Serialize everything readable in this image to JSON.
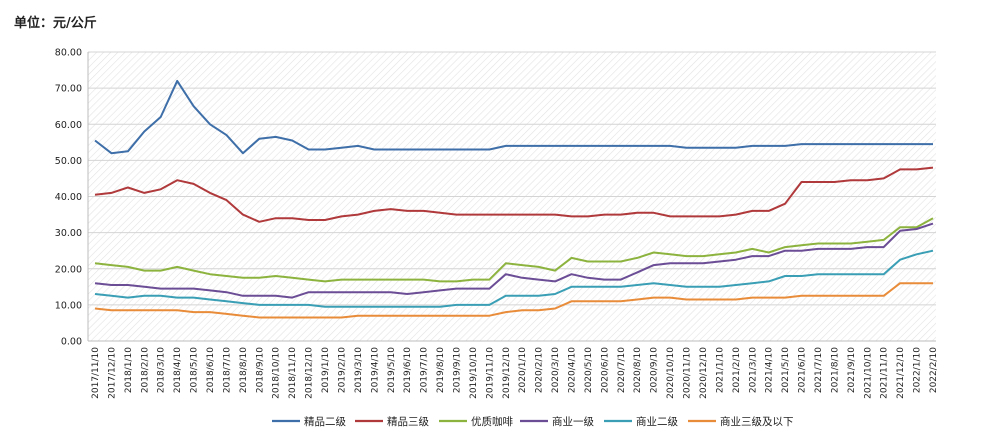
{
  "unit_label": "单位：元/公斤",
  "chart_data": {
    "type": "line",
    "ylim": [
      0,
      80
    ],
    "y_ticks": [
      "0.00",
      "10.00",
      "20.00",
      "30.00",
      "40.00",
      "50.00",
      "60.00",
      "70.00",
      "80.00"
    ],
    "x_ticks": [
      "2017/11/10",
      "2017/12/10",
      "2018/1/10",
      "2018/2/10",
      "2018/3/10",
      "2018/4/10",
      "2018/5/10",
      "2018/6/10",
      "2018/7/10",
      "2018/8/10",
      "2018/9/10",
      "2018/10/10",
      "2018/11/10",
      "2018/12/10",
      "2019/1/10",
      "2019/2/10",
      "2019/3/10",
      "2019/4/10",
      "2019/5/10",
      "2019/6/10",
      "2019/7/10",
      "2019/8/10",
      "2019/9/10",
      "2019/10/10",
      "2019/11/10",
      "2019/12/10",
      "2020/1/10",
      "2020/2/10",
      "2020/3/10",
      "2020/4/10",
      "2020/5/10",
      "2020/6/10",
      "2020/7/10",
      "2020/8/10",
      "2020/9/10",
      "2020/10/10",
      "2020/11/10",
      "2020/12/10",
      "2021/1/10",
      "2021/2/10",
      "2021/3/10",
      "2021/4/10",
      "2021/5/10",
      "2021/6/10",
      "2021/7/10",
      "2021/8/10",
      "2021/9/10",
      "2021/10/10",
      "2021/11/10",
      "2021/12/10",
      "2022/1/10",
      "2022/2/10"
    ],
    "grid": true,
    "background_pattern": "diagonal-hatch",
    "legend_position": "bottom",
    "series": [
      {
        "name": "精品二级",
        "color": "#3f6fa8",
        "values": [
          55.5,
          52.0,
          52.5,
          58.0,
          62.0,
          72.0,
          65.0,
          60.0,
          57.0,
          52.0,
          56.0,
          56.5,
          55.5,
          53.0,
          53.0,
          53.5,
          54.0,
          53.0,
          53.0,
          53.0,
          53.0,
          53.0,
          53.0,
          53.0,
          53.0,
          54.0,
          54.0,
          54.0,
          54.0,
          54.0,
          54.0,
          54.0,
          54.0,
          54.0,
          54.0,
          54.0,
          53.5,
          53.5,
          53.5,
          53.5,
          54.0,
          54.0,
          54.0,
          54.5,
          54.5,
          54.5,
          54.5,
          54.5,
          54.5,
          54.5,
          54.5,
          54.5
        ]
      },
      {
        "name": "精品三级",
        "color": "#b0393b",
        "values": [
          40.5,
          41.0,
          42.5,
          41.0,
          42.0,
          44.5,
          43.5,
          41.0,
          39.0,
          35.0,
          33.0,
          34.0,
          34.0,
          33.5,
          33.5,
          34.5,
          35.0,
          36.0,
          36.5,
          36.0,
          36.0,
          35.5,
          35.0,
          35.0,
          35.0,
          35.0,
          35.0,
          35.0,
          35.0,
          34.5,
          34.5,
          35.0,
          35.0,
          35.5,
          35.5,
          34.5,
          34.5,
          34.5,
          34.5,
          35.0,
          36.0,
          36.0,
          38.0,
          44.0,
          44.0,
          44.0,
          44.5,
          44.5,
          45.0,
          47.5,
          47.5,
          48.0
        ]
      },
      {
        "name": "优质咖啡",
        "color": "#8db33f",
        "values": [
          21.5,
          21.0,
          20.5,
          19.5,
          19.5,
          20.5,
          19.5,
          18.5,
          18.0,
          17.5,
          17.5,
          18.0,
          17.5,
          17.0,
          16.5,
          17.0,
          17.0,
          17.0,
          17.0,
          17.0,
          17.0,
          16.5,
          16.5,
          17.0,
          17.0,
          21.5,
          21.0,
          20.5,
          19.5,
          23.0,
          22.0,
          22.0,
          22.0,
          23.0,
          24.5,
          24.0,
          23.5,
          23.5,
          24.0,
          24.5,
          25.5,
          24.5,
          26.0,
          26.5,
          27.0,
          27.0,
          27.0,
          27.5,
          28.0,
          31.5,
          31.5,
          34.0
        ]
      },
      {
        "name": "商业一级",
        "color": "#6b4d96",
        "values": [
          16.0,
          15.5,
          15.5,
          15.0,
          14.5,
          14.5,
          14.5,
          14.0,
          13.5,
          12.5,
          12.5,
          12.5,
          12.0,
          13.5,
          13.5,
          13.5,
          13.5,
          13.5,
          13.5,
          13.0,
          13.5,
          14.0,
          14.5,
          14.5,
          14.5,
          18.5,
          17.5,
          17.0,
          16.5,
          18.5,
          17.5,
          17.0,
          17.0,
          19.0,
          21.0,
          21.5,
          21.5,
          21.5,
          22.0,
          22.5,
          23.5,
          23.5,
          25.0,
          25.0,
          25.5,
          25.5,
          25.5,
          26.0,
          26.0,
          30.5,
          31.0,
          32.5
        ]
      },
      {
        "name": "商业二级",
        "color": "#3a9fb5",
        "values": [
          13.0,
          12.5,
          12.0,
          12.5,
          12.5,
          12.0,
          12.0,
          11.5,
          11.0,
          10.5,
          10.0,
          10.0,
          10.0,
          10.0,
          9.5,
          9.5,
          9.5,
          9.5,
          9.5,
          9.5,
          9.5,
          9.5,
          10.0,
          10.0,
          10.0,
          12.5,
          12.5,
          12.5,
          13.0,
          15.0,
          15.0,
          15.0,
          15.0,
          15.5,
          16.0,
          15.5,
          15.0,
          15.0,
          15.0,
          15.5,
          16.0,
          16.5,
          18.0,
          18.0,
          18.5,
          18.5,
          18.5,
          18.5,
          18.5,
          22.5,
          24.0,
          25.0
        ]
      },
      {
        "name": "商业三级及以下",
        "color": "#e98c3a",
        "values": [
          9.0,
          8.5,
          8.5,
          8.5,
          8.5,
          8.5,
          8.0,
          8.0,
          7.5,
          7.0,
          6.5,
          6.5,
          6.5,
          6.5,
          6.5,
          6.5,
          7.0,
          7.0,
          7.0,
          7.0,
          7.0,
          7.0,
          7.0,
          7.0,
          7.0,
          8.0,
          8.5,
          8.5,
          9.0,
          11.0,
          11.0,
          11.0,
          11.0,
          11.5,
          12.0,
          12.0,
          11.5,
          11.5,
          11.5,
          11.5,
          12.0,
          12.0,
          12.0,
          12.5,
          12.5,
          12.5,
          12.5,
          12.5,
          12.5,
          16.0,
          16.0,
          16.0
        ]
      }
    ]
  }
}
